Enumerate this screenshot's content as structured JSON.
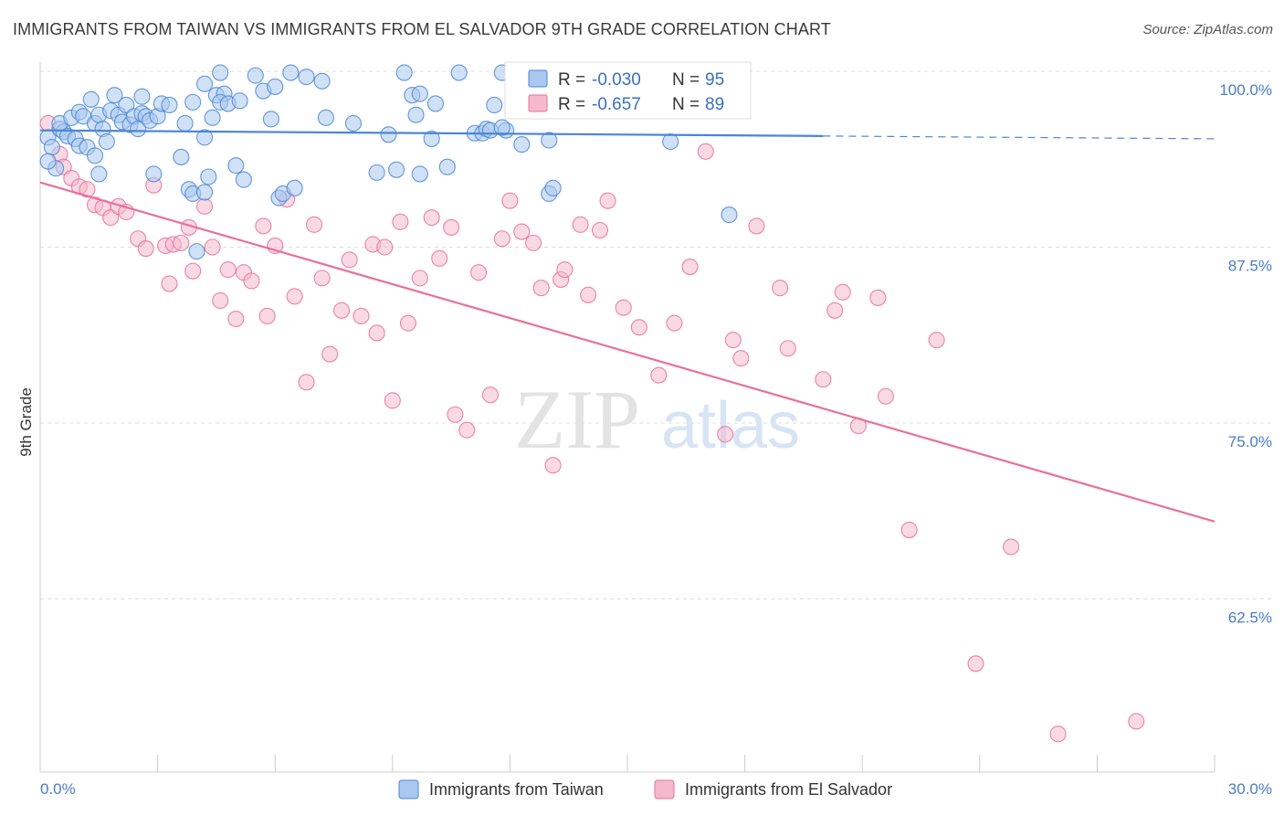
{
  "title": "IMMIGRANTS FROM TAIWAN VS IMMIGRANTS FROM EL SALVADOR 9TH GRADE CORRELATION CHART",
  "source": "Source: ZipAtlas.com",
  "watermark": {
    "zip": "ZIP",
    "atlas": "atlas"
  },
  "colors": {
    "taiwan": "#4a86d6",
    "taiwan_fill": "#aac8ef",
    "salvador": "#e8709b",
    "salvador_fill": "#f4b9cd",
    "tick": "#4a7cc4"
  },
  "legend": {
    "rows": [
      {
        "r_label": "R = ",
        "r_value": "-0.030",
        "n_label": "N = ",
        "n_value": "95"
      },
      {
        "r_label": "R = ",
        "r_value": "-0.657",
        "n_label": "N = ",
        "n_value": "89"
      }
    ]
  },
  "chart_data": {
    "type": "scatter",
    "title": "IMMIGRANTS FROM TAIWAN VS IMMIGRANTS FROM EL SALVADOR 9TH GRADE CORRELATION CHART",
    "xlabel": "",
    "ylabel": "9th Grade",
    "xlim": [
      0,
      30
    ],
    "ylim": [
      50,
      101.5
    ],
    "x_tick_labels": [
      "0.0%",
      "30.0%"
    ],
    "y_ticks": [
      62.5,
      75.0,
      87.5,
      100.0
    ],
    "y_tick_labels": [
      "62.5%",
      "75.0%",
      "87.5%",
      "100.0%"
    ],
    "grid": true,
    "legend_position": "top-center",
    "series": [
      {
        "name": "Immigrants from Taiwan",
        "r": -0.03,
        "n": 95,
        "trend": {
          "x0": 0,
          "y0": 95.8,
          "x1": 20.0,
          "y1": 95.4,
          "dash_to_x": 30,
          "dash_y": 95.2
        },
        "points": [
          [
            0.2,
            95.3
          ],
          [
            0.3,
            94.6
          ],
          [
            0.4,
            93.1
          ],
          [
            0.2,
            93.6
          ],
          [
            0.5,
            95.9
          ],
          [
            0.6,
            95.7
          ],
          [
            0.7,
            95.4
          ],
          [
            0.5,
            96.3
          ],
          [
            0.8,
            96.7
          ],
          [
            0.9,
            95.2
          ],
          [
            1.0,
            97.1
          ],
          [
            1.1,
            96.8
          ],
          [
            1.0,
            94.7
          ],
          [
            1.2,
            94.6
          ],
          [
            1.3,
            98.0
          ],
          [
            1.4,
            96.3
          ],
          [
            1.5,
            96.9
          ],
          [
            1.6,
            95.9
          ],
          [
            1.4,
            94.0
          ],
          [
            1.5,
            92.7
          ],
          [
            1.7,
            95.0
          ],
          [
            1.8,
            97.2
          ],
          [
            1.9,
            98.3
          ],
          [
            2.0,
            96.9
          ],
          [
            2.1,
            96.4
          ],
          [
            2.2,
            97.6
          ],
          [
            2.3,
            96.2
          ],
          [
            2.4,
            96.8
          ],
          [
            2.5,
            95.9
          ],
          [
            2.6,
            97.0
          ],
          [
            2.7,
            96.8
          ],
          [
            2.8,
            96.5
          ],
          [
            2.9,
            92.7
          ],
          [
            3.0,
            96.8
          ],
          [
            3.1,
            97.7
          ],
          [
            2.6,
            98.2
          ],
          [
            3.3,
            97.6
          ],
          [
            3.6,
            93.9
          ],
          [
            3.8,
            91.6
          ],
          [
            3.9,
            91.3
          ],
          [
            3.7,
            96.3
          ],
          [
            3.9,
            97.8
          ],
          [
            4.0,
            87.2
          ],
          [
            4.2,
            99.1
          ],
          [
            4.2,
            95.3
          ],
          [
            4.3,
            92.5
          ],
          [
            4.4,
            96.7
          ],
          [
            4.5,
            98.3
          ],
          [
            4.6,
            99.9
          ],
          [
            4.7,
            98.4
          ],
          [
            4.6,
            97.8
          ],
          [
            4.8,
            97.7
          ],
          [
            5.0,
            93.3
          ],
          [
            5.1,
            97.9
          ],
          [
            5.2,
            92.3
          ],
          [
            5.5,
            99.7
          ],
          [
            5.7,
            98.6
          ],
          [
            5.9,
            96.6
          ],
          [
            6.0,
            98.9
          ],
          [
            4.2,
            91.4
          ],
          [
            6.1,
            91.0
          ],
          [
            6.2,
            91.3
          ],
          [
            6.4,
            99.9
          ],
          [
            6.5,
            91.7
          ],
          [
            6.8,
            99.6
          ],
          [
            7.2,
            99.3
          ],
          [
            7.3,
            96.7
          ],
          [
            8.0,
            96.3
          ],
          [
            8.6,
            92.8
          ],
          [
            8.9,
            95.5
          ],
          [
            9.1,
            93.0
          ],
          [
            9.3,
            99.9
          ],
          [
            9.5,
            98.3
          ],
          [
            9.6,
            96.9
          ],
          [
            9.7,
            98.4
          ],
          [
            9.7,
            92.7
          ],
          [
            10.0,
            95.2
          ],
          [
            10.1,
            97.7
          ],
          [
            10.4,
            93.2
          ],
          [
            10.7,
            99.9
          ],
          [
            11.1,
            95.6
          ],
          [
            11.3,
            95.6
          ],
          [
            11.4,
            95.9
          ],
          [
            11.5,
            95.8
          ],
          [
            11.9,
            95.8
          ],
          [
            12.3,
            94.8
          ],
          [
            13.0,
            91.3
          ],
          [
            13.1,
            91.7
          ],
          [
            13.0,
            95.1
          ],
          [
            15.7,
            97.4
          ],
          [
            16.1,
            95.0
          ],
          [
            11.8,
            96.0
          ],
          [
            17.6,
            89.8
          ],
          [
            11.6,
            97.6
          ],
          [
            11.8,
            99.9
          ]
        ]
      },
      {
        "name": "Immigrants from El Salvador",
        "r": -0.657,
        "n": 89,
        "trend": {
          "x0": 0,
          "y0": 92.1,
          "x1": 30,
          "y1": 68.0
        },
        "points": [
          [
            0.2,
            96.3
          ],
          [
            0.5,
            94.1
          ],
          [
            0.6,
            93.2
          ],
          [
            0.8,
            92.4
          ],
          [
            1.0,
            91.8
          ],
          [
            1.2,
            91.6
          ],
          [
            1.4,
            90.5
          ],
          [
            1.6,
            90.3
          ],
          [
            1.8,
            89.6
          ],
          [
            2.0,
            90.4
          ],
          [
            2.2,
            90.0
          ],
          [
            2.5,
            88.1
          ],
          [
            2.7,
            87.4
          ],
          [
            2.9,
            91.9
          ],
          [
            3.2,
            87.6
          ],
          [
            3.4,
            87.7
          ],
          [
            3.3,
            84.9
          ],
          [
            3.6,
            87.8
          ],
          [
            3.8,
            88.9
          ],
          [
            3.9,
            85.8
          ],
          [
            4.2,
            90.4
          ],
          [
            4.4,
            87.5
          ],
          [
            4.6,
            83.7
          ],
          [
            4.8,
            85.9
          ],
          [
            5.0,
            82.4
          ],
          [
            5.2,
            85.7
          ],
          [
            5.4,
            85.1
          ],
          [
            5.7,
            89.0
          ],
          [
            5.8,
            82.6
          ],
          [
            6.0,
            87.6
          ],
          [
            6.3,
            90.9
          ],
          [
            6.5,
            84.0
          ],
          [
            6.8,
            77.9
          ],
          [
            7.0,
            89.1
          ],
          [
            7.2,
            85.3
          ],
          [
            7.4,
            79.9
          ],
          [
            7.7,
            83.0
          ],
          [
            7.9,
            86.6
          ],
          [
            8.2,
            82.6
          ],
          [
            8.5,
            87.7
          ],
          [
            8.6,
            81.4
          ],
          [
            8.8,
            87.5
          ],
          [
            9.0,
            76.6
          ],
          [
            9.2,
            89.3
          ],
          [
            9.4,
            82.1
          ],
          [
            9.7,
            85.3
          ],
          [
            10.0,
            89.6
          ],
          [
            10.2,
            86.7
          ],
          [
            10.5,
            88.9
          ],
          [
            10.6,
            75.6
          ],
          [
            10.9,
            74.5
          ],
          [
            11.2,
            85.7
          ],
          [
            11.5,
            77.0
          ],
          [
            11.8,
            88.1
          ],
          [
            12.0,
            90.8
          ],
          [
            12.3,
            88.6
          ],
          [
            12.6,
            87.8
          ],
          [
            12.8,
            84.6
          ],
          [
            13.1,
            72.0
          ],
          [
            13.3,
            85.2
          ],
          [
            13.4,
            85.9
          ],
          [
            13.8,
            89.1
          ],
          [
            14.0,
            84.1
          ],
          [
            14.3,
            88.7
          ],
          [
            14.5,
            90.8
          ],
          [
            14.9,
            83.2
          ],
          [
            15.3,
            81.8
          ],
          [
            15.8,
            78.4
          ],
          [
            16.2,
            82.1
          ],
          [
            16.6,
            86.1
          ],
          [
            17.0,
            94.3
          ],
          [
            17.5,
            74.2
          ],
          [
            17.7,
            80.9
          ],
          [
            17.9,
            79.6
          ],
          [
            18.3,
            89.0
          ],
          [
            18.9,
            84.6
          ],
          [
            19.1,
            80.3
          ],
          [
            20.0,
            78.1
          ],
          [
            20.3,
            83.0
          ],
          [
            20.5,
            84.3
          ],
          [
            20.9,
            74.8
          ],
          [
            21.4,
            83.9
          ],
          [
            21.6,
            76.9
          ],
          [
            22.2,
            67.4
          ],
          [
            22.9,
            80.9
          ],
          [
            23.9,
            57.9
          ],
          [
            24.8,
            66.2
          ],
          [
            26.0,
            52.9
          ],
          [
            28.0,
            53.8
          ]
        ]
      }
    ]
  }
}
